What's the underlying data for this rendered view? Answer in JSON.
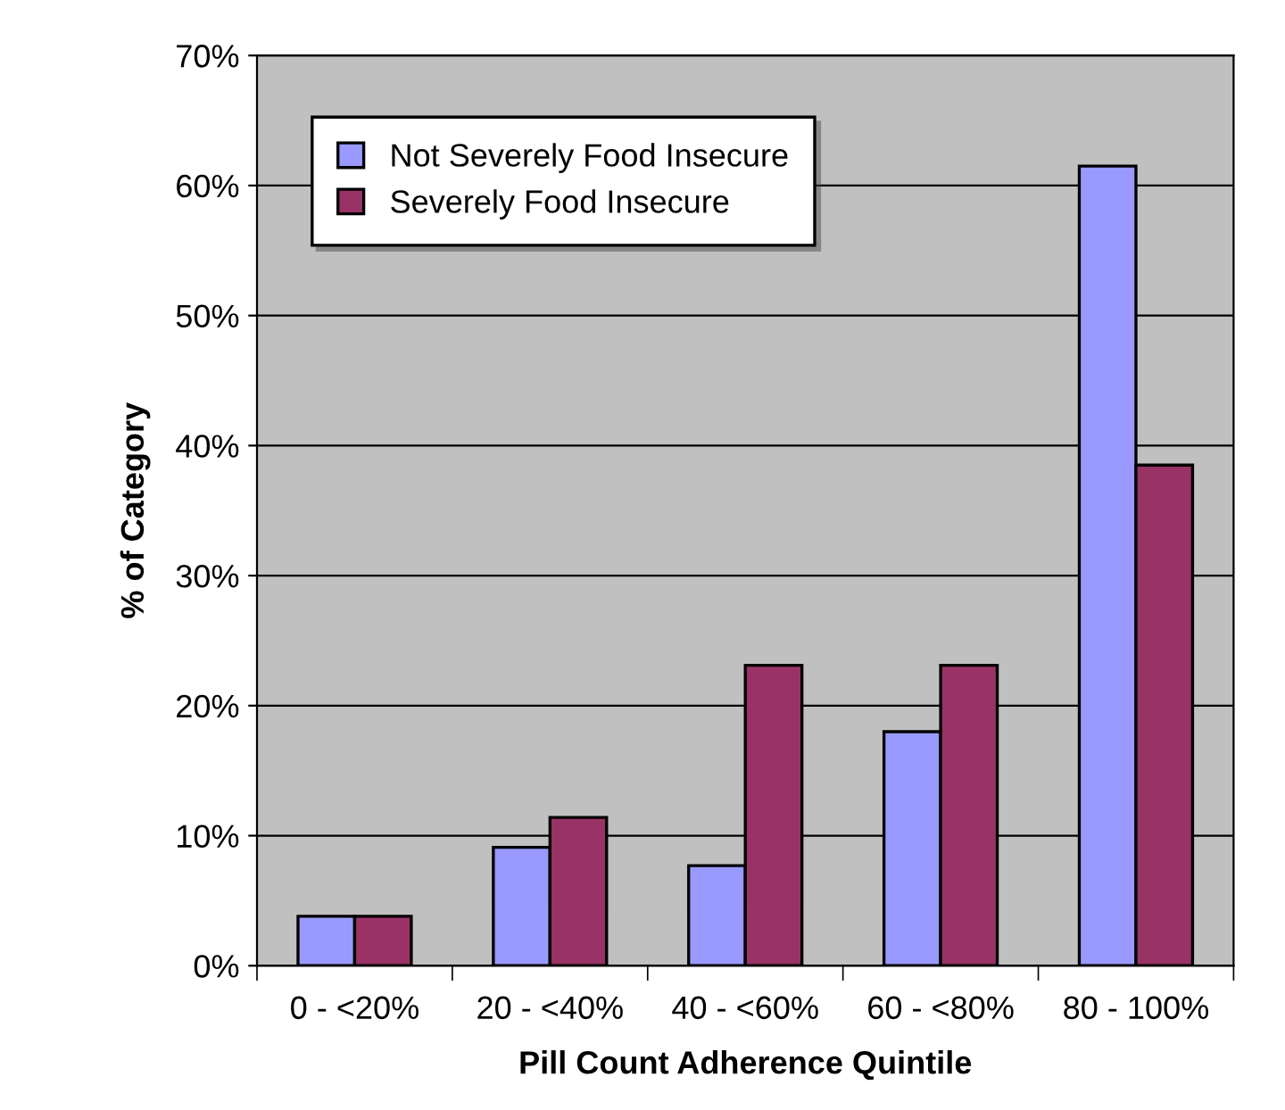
{
  "chart_data": {
    "type": "bar",
    "xlabel": "Pill Count Adherence Quintile",
    "ylabel": "% of Category",
    "categories": [
      "0 - <20%",
      "20 - <40%",
      "40 - <60%",
      "60 - <80%",
      "80 - 100%"
    ],
    "series": [
      {
        "name": "Not Severely Food Insecure",
        "color": "#9999ff",
        "values": [
          3.8,
          9.1,
          7.7,
          18.0,
          61.5
        ]
      },
      {
        "name": "Severely Food Insecure",
        "color": "#993366",
        "values": [
          3.8,
          11.4,
          23.1,
          23.1,
          38.5
        ]
      }
    ],
    "ylim": [
      0,
      70
    ],
    "yticks": [
      {
        "value": 0,
        "label": "0%"
      },
      {
        "value": 10,
        "label": "10%"
      },
      {
        "value": 20,
        "label": "20%"
      },
      {
        "value": 30,
        "label": "30%"
      },
      {
        "value": 40,
        "label": "40%"
      },
      {
        "value": 50,
        "label": "50%"
      },
      {
        "value": 60,
        "label": "60%"
      },
      {
        "value": 70,
        "label": "70%"
      }
    ],
    "grid": "y",
    "legend": "top left"
  }
}
